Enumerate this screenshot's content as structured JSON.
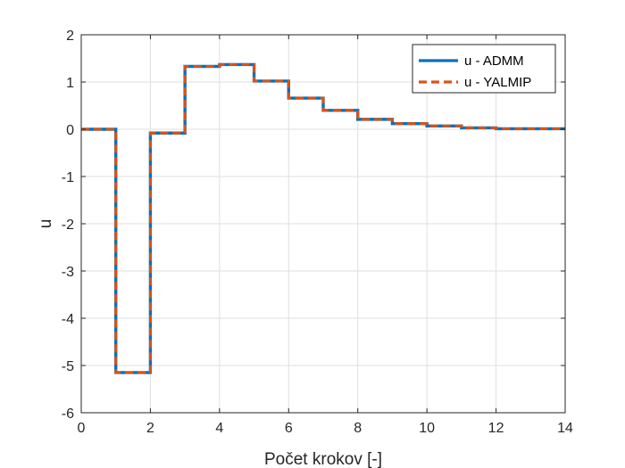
{
  "chart_data": {
    "type": "line",
    "step": true,
    "title": "",
    "xlabel": "Počet krokov [-]",
    "ylabel": "u",
    "xlim": [
      0,
      14
    ],
    "ylim": [
      -6,
      2
    ],
    "xticks": [
      0,
      2,
      4,
      6,
      8,
      10,
      12,
      14
    ],
    "yticks": [
      -6,
      -5,
      -4,
      -3,
      -2,
      -1,
      0,
      1,
      2
    ],
    "grid": true,
    "legend_position": "top-right",
    "series": [
      {
        "name": "u - ADMM",
        "color": "#0072BD",
        "line_style": "solid",
        "x": [
          0,
          1,
          2,
          3,
          4,
          5,
          6,
          7,
          8,
          9,
          10,
          11,
          12,
          13,
          14
        ],
        "values": [
          0,
          -5.15,
          -0.08,
          1.33,
          1.37,
          1.02,
          0.66,
          0.4,
          0.21,
          0.12,
          0.07,
          0.03,
          0.01,
          0.01,
          0.01
        ]
      },
      {
        "name": "u - YALMIP",
        "color": "#D95319",
        "line_style": "dashed",
        "x": [
          0,
          1,
          2,
          3,
          4,
          5,
          6,
          7,
          8,
          9,
          10,
          11,
          12,
          13,
          14
        ],
        "values": [
          0,
          -5.15,
          -0.08,
          1.33,
          1.37,
          1.02,
          0.66,
          0.4,
          0.21,
          0.12,
          0.07,
          0.03,
          0.01,
          0.01,
          0.01
        ]
      }
    ]
  }
}
